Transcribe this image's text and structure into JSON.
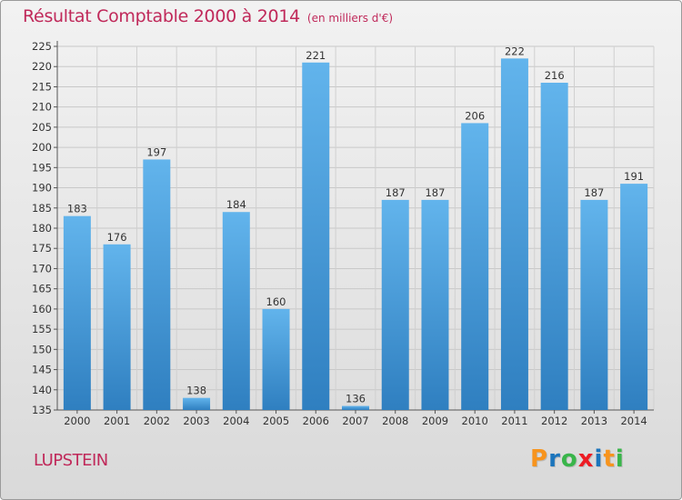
{
  "title": "Résultat Comptable 2000 à 2014",
  "subtitle": "(en milliers d'€)",
  "commune": "LUPSTEIN",
  "logo": {
    "letters": [
      "P",
      "r",
      "o",
      "x",
      "i",
      "t",
      "i"
    ],
    "colors": [
      "#f7941d",
      "#1c75bc",
      "#39b54a",
      "#ed1c24",
      "#1c75bc",
      "#f7941d",
      "#39b54a"
    ]
  },
  "colors": {
    "bar_top": "#62b4ec",
    "bar_bottom": "#2f7fc0",
    "accent": "#c0295a"
  },
  "chart_data": {
    "type": "bar",
    "categories": [
      "2000",
      "2001",
      "2002",
      "2003",
      "2004",
      "2005",
      "2006",
      "2007",
      "2008",
      "2009",
      "2010",
      "2011",
      "2012",
      "2013",
      "2014"
    ],
    "values": [
      183,
      176,
      197,
      138,
      184,
      160,
      221,
      136,
      187,
      187,
      206,
      222,
      216,
      187,
      191
    ],
    "ylim": [
      135,
      225
    ],
    "yticks": [
      135,
      140,
      145,
      150,
      155,
      160,
      165,
      170,
      175,
      180,
      185,
      190,
      195,
      200,
      205,
      210,
      215,
      220,
      225
    ],
    "grid": true
  }
}
